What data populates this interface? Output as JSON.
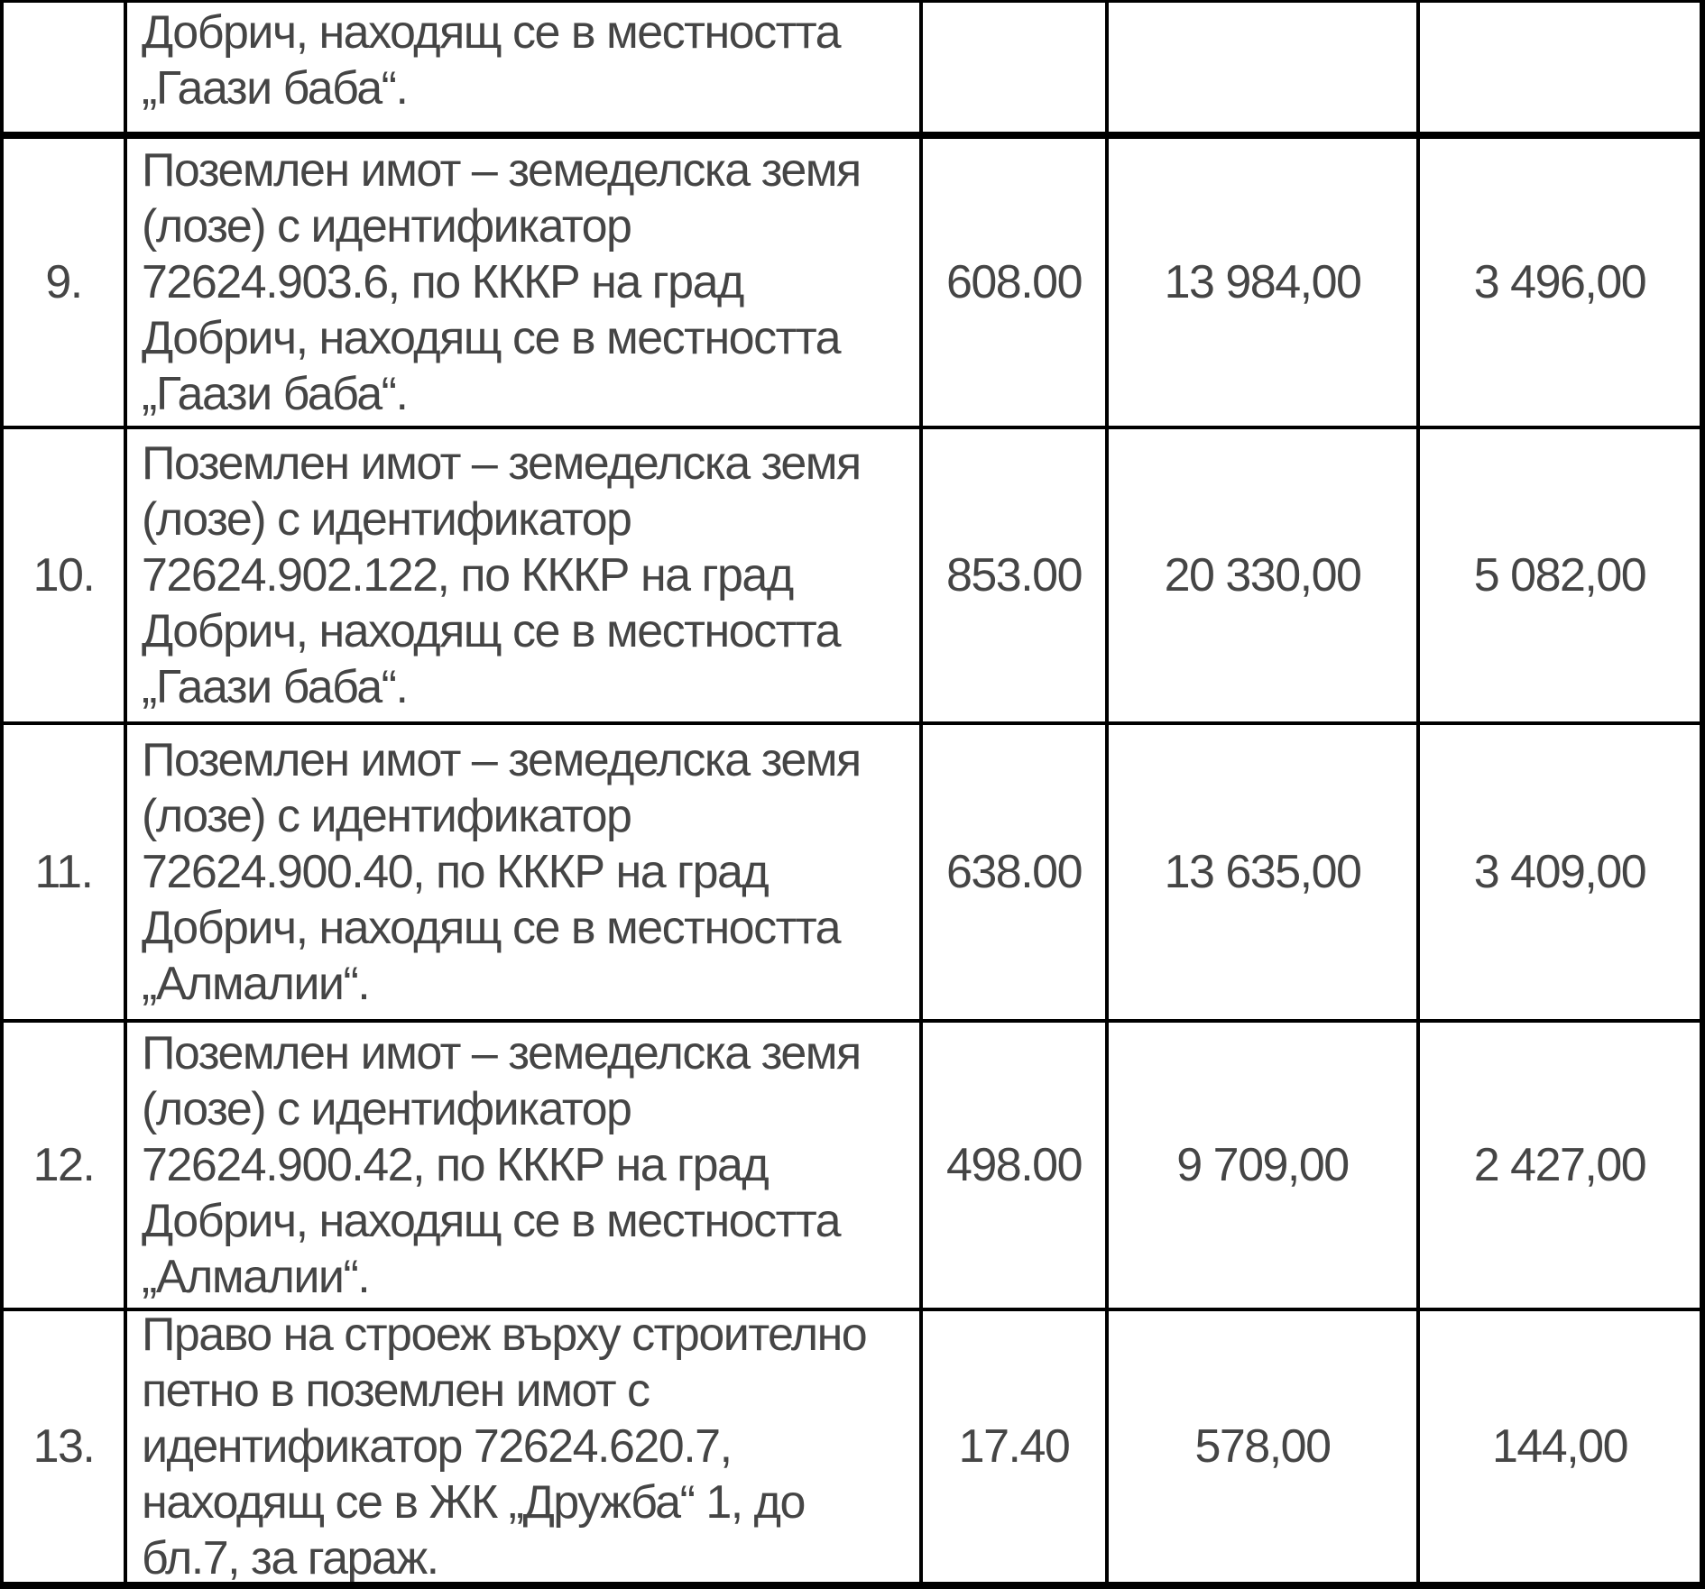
{
  "table": {
    "rows": [
      {
        "number": "",
        "description": "Добрич, находящ се в местността\n„Гаази баба“.",
        "area": "",
        "value": "",
        "tax": ""
      },
      {
        "number": "9.",
        "description": "Поземлен имот – земеделска земя\n(лозе) с идентификатор\n72624.903.6, по КККР на град\nДобрич, находящ се в местността\n„Гаази баба“.",
        "area": "608.00",
        "value": "13 984,00",
        "tax": "3 496,00"
      },
      {
        "number": "10.",
        "description": "Поземлен имот – земеделска земя\n(лозе) с идентификатор\n72624.902.122, по КККР на град\nДобрич, находящ се в местността\n„Гаази баба“.",
        "area": "853.00",
        "value": "20 330,00",
        "tax": "5 082,00"
      },
      {
        "number": "11.",
        "description": "Поземлен имот – земеделска земя\n(лозе) с идентификатор\n72624.900.40, по КККР на град\nДобрич, находящ се в местността\n„Алмалии“.",
        "area": "638.00",
        "value": "13 635,00",
        "tax": "3 409,00"
      },
      {
        "number": "12.",
        "description": "Поземлен имот – земеделска земя\n(лозе) с идентификатор\n72624.900.42, по КККР на град\nДобрич, находящ се в местността\n„Алмалии“.",
        "area": "498.00",
        "value": "9 709,00",
        "tax": "2 427,00"
      },
      {
        "number": "13.",
        "description": "Право на строеж върху строително\nпетно в поземлен имот с\nидентификатор 72624.620.7,\nнаходящ се в ЖК „Дружба“ 1, до\nбл.7, за гараж.",
        "area": "17.40",
        "value": "578,00",
        "tax": "144,00"
      }
    ]
  }
}
